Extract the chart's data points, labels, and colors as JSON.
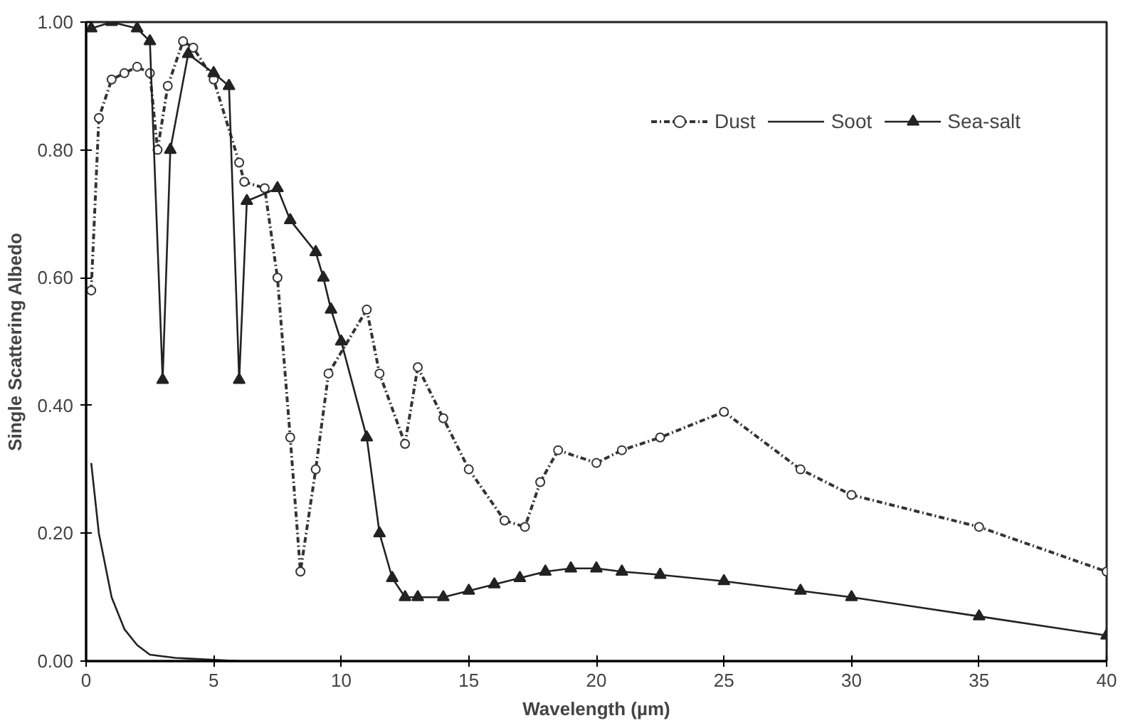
{
  "chart_data": {
    "type": "line",
    "xlabel": "Wavelength (µm)",
    "ylabel": "Single Scattering Albedo",
    "xlim": [
      0,
      40
    ],
    "xticks": [
      0,
      5,
      10,
      15,
      20,
      25,
      30,
      35,
      40
    ],
    "ylim": [
      0,
      1.0
    ],
    "yticks": [
      {
        "value": 0,
        "label": "0.00"
      },
      {
        "value": 0.2,
        "label": "0.20"
      },
      {
        "value": 0.4,
        "label": "0.40"
      },
      {
        "value": 0.6,
        "label": "0.60"
      },
      {
        "value": 0.8,
        "label": "0.80"
      },
      {
        "value": 1.0,
        "label": "1.00"
      }
    ],
    "grid": false,
    "legend": "top right",
    "series": [
      {
        "name": "Dust",
        "color": "#333333",
        "marker": "circle",
        "line_style": "dotted",
        "x": [
          0.2,
          0.5,
          1,
          1.5,
          2,
          2.5,
          2.8,
          3.2,
          3.8,
          4.2,
          5,
          6,
          6.2,
          7,
          7.5,
          8,
          8.4,
          9,
          9.5,
          11,
          11.5,
          12.5,
          13,
          14,
          15,
          16.4,
          17.2,
          17.8,
          18.5,
          20,
          21,
          22.5,
          25,
          28,
          30,
          35,
          40
        ],
        "values": [
          0.58,
          0.85,
          0.91,
          0.92,
          0.93,
          0.92,
          0.8,
          0.9,
          0.97,
          0.96,
          0.91,
          0.78,
          0.75,
          0.74,
          0.6,
          0.35,
          0.14,
          0.3,
          0.45,
          0.55,
          0.45,
          0.34,
          0.46,
          0.38,
          0.3,
          0.22,
          0.21,
          0.28,
          0.33,
          0.31,
          0.33,
          0.35,
          0.39,
          0.3,
          0.26,
          0.21,
          0.14
        ]
      },
      {
        "name": "Soot",
        "color": "#222222",
        "marker": "none",
        "line_style": "solid",
        "x": [
          0.2,
          0.5,
          1,
          1.5,
          2,
          2.5,
          3.5,
          6
        ],
        "values": [
          0.31,
          0.2,
          0.1,
          0.05,
          0.025,
          0.01,
          0.005,
          0.0
        ]
      },
      {
        "name": "Sea-salt",
        "color": "#222222",
        "marker": "triangle",
        "line_style": "solid",
        "x": [
          0.2,
          1,
          2,
          2.5,
          3,
          3.3,
          4,
          5,
          5.6,
          6,
          6.3,
          7.5,
          8,
          9,
          9.3,
          9.6,
          10,
          11,
          11.5,
          12,
          12.5,
          13,
          14,
          15,
          16,
          17,
          18,
          19,
          20,
          21,
          22.5,
          25,
          28,
          30,
          35,
          40
        ],
        "values": [
          0.99,
          1.0,
          0.99,
          0.97,
          0.44,
          0.8,
          0.95,
          0.92,
          0.9,
          0.44,
          0.72,
          0.74,
          0.69,
          0.64,
          0.6,
          0.55,
          0.5,
          0.35,
          0.2,
          0.13,
          0.1,
          0.1,
          0.1,
          0.11,
          0.12,
          0.13,
          0.14,
          0.145,
          0.145,
          0.14,
          0.135,
          0.125,
          0.11,
          0.1,
          0.07,
          0.04
        ]
      }
    ]
  }
}
